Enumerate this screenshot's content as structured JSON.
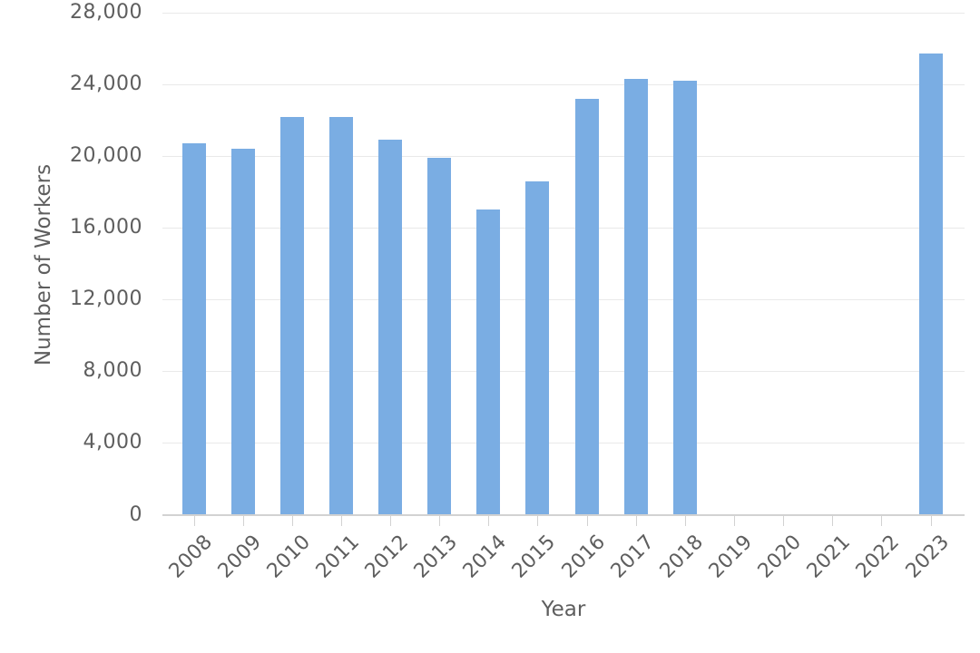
{
  "chart_data": {
    "type": "bar",
    "title": "",
    "xlabel": "Year",
    "ylabel": "Number of Workers",
    "categories": [
      "2008",
      "2009",
      "2010",
      "2011",
      "2012",
      "2013",
      "2014",
      "2015",
      "2016",
      "2017",
      "2018",
      "2019",
      "2020",
      "2021",
      "2022",
      "2023"
    ],
    "values": [
      20700,
      20400,
      22200,
      22200,
      20900,
      19900,
      17000,
      18600,
      23200,
      24300,
      24200,
      0,
      0,
      0,
      0,
      25700
    ],
    "ylim": [
      0,
      28000
    ],
    "ytick_interval": 4000,
    "ytick_labels": [
      "0",
      "4,000",
      "8,000",
      "12,000",
      "16,000",
      "20,000",
      "24,000",
      "28,000"
    ],
    "grid": true,
    "legend_position": "none",
    "x_label_rotation": -45,
    "colors": {
      "bar": "#7aade3",
      "gridline": "#e9e9e9",
      "axis_line": "#d2d2d2",
      "tick": "#d2d2d2",
      "text": "#5e5e5e"
    }
  }
}
